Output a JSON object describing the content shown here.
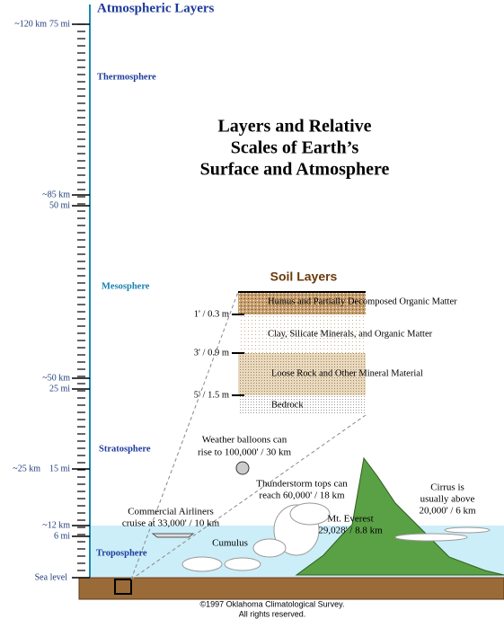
{
  "header": {
    "title": "Atmospheric Layers"
  },
  "scale": {
    "top_km": "~120 km",
    "top_mi": "75 mi",
    "thermosphere": "Thermosphere",
    "meso_km": "~85 km",
    "meso_mi": "50 mi",
    "mesosphere": "Mesosphere",
    "strato_km": "~50 km",
    "strato_mi": "25 mi",
    "stratosphere": "Stratosphere",
    "mid_km": "~25 km",
    "mid_mi": "15 mi",
    "tropo_km": "~12 km",
    "tropo_mi": "6 mi",
    "troposphere": "Troposphere",
    "sea_level": "Sea level"
  },
  "title": [
    "Layers and Relative",
    "Scales of Earth’s",
    "Surface and Atmosphere"
  ],
  "soil": {
    "title": "Soil Layers",
    "depths": [
      "1' / 0.3 m",
      "3' / 0.9 m",
      "5' / 1.5 m"
    ],
    "layers": [
      "Humus and Partially Decomposed Organic Matter",
      "Clay, Silicate Minerals, and Organic Matter",
      "Loose Rock and Other Mineral Material",
      "Bedrock"
    ]
  },
  "annotations": {
    "balloons": [
      "Weather balloons can",
      "rise to 100,000' / 30 km"
    ],
    "thunderstorm": [
      "Thunderstorm tops can",
      "reach 60,000' / 18 km"
    ],
    "cirrus": [
      "Cirrus is",
      "usually above",
      "20,000' / 6 km"
    ],
    "airliners": [
      "Commercial Airliners",
      "cruise at 33,000' / 10 km"
    ],
    "everest": [
      "Mt. Everest",
      "29,028' / 8.8 km"
    ],
    "cumulus": "Cumulus"
  },
  "footer": [
    "©1997 Oklahoma Climatological Survey.",
    "All rights reserved."
  ]
}
